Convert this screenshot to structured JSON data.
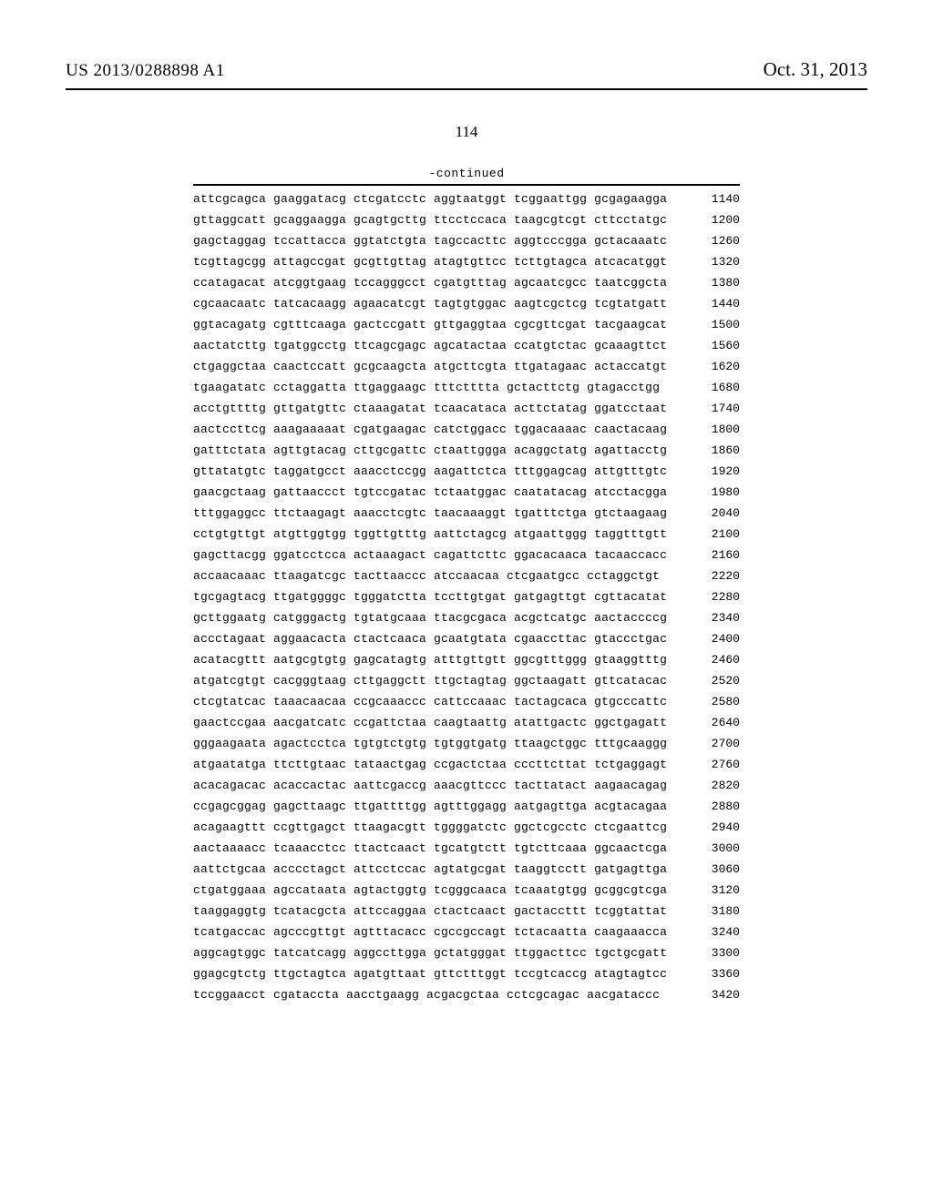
{
  "header": {
    "publication_number": "US 2013/0288898 A1",
    "publication_date": "Oct. 31, 2013"
  },
  "page_number": "114",
  "continued_label": "-continued",
  "sequence": {
    "rows": [
      {
        "groups": [
          "attcgcagca",
          "gaaggatacg",
          "ctcgatcctc",
          "aggtaatggt",
          "tcggaattgg",
          "gcgagaagga"
        ],
        "pos": 1140
      },
      {
        "groups": [
          "gttaggcatt",
          "gcaggaagga",
          "gcagtgcttg",
          "ttcctccaca",
          "taagcgtcgt",
          "cttcctatgc"
        ],
        "pos": 1200
      },
      {
        "groups": [
          "gagctaggag",
          "tccattacca",
          "ggtatctgta",
          "tagccacttc",
          "aggtcccgga",
          "gctacaaatc"
        ],
        "pos": 1260
      },
      {
        "groups": [
          "tcgttagcgg",
          "attagccgat",
          "gcgttgttag",
          "atagtgttcc",
          "tcttgtagca",
          "atcacatggt"
        ],
        "pos": 1320
      },
      {
        "groups": [
          "ccatagacat",
          "atcggtgaag",
          "tccagggcct",
          "cgatgtttag",
          "agcaatcgcc",
          "taatcggcta"
        ],
        "pos": 1380
      },
      {
        "groups": [
          "cgcaacaatc",
          "tatcacaagg",
          "agaacatcgt",
          "tagtgtggac",
          "aagtcgctcg",
          "tcgtatgatt"
        ],
        "pos": 1440
      },
      {
        "groups": [
          "ggtacagatg",
          "cgtttcaaga",
          "gactccgatt",
          "gttgaggtaa",
          "cgcgttcgat",
          "tacgaagcat"
        ],
        "pos": 1500
      },
      {
        "groups": [
          "aactatcttg",
          "tgatggcctg",
          "ttcagcgagc",
          "agcatactaa",
          "ccatgtctac",
          "gcaaagttct"
        ],
        "pos": 1560
      },
      {
        "groups": [
          "ctgaggctaa",
          "caactccatt",
          "gcgcaagcta",
          "atgcttcgta",
          "ttgatagaac",
          "actaccatgt"
        ],
        "pos": 1620
      },
      {
        "groups": [
          "tgaagatatc",
          "cctaggatta",
          "ttgaggaagc",
          "tttctttta",
          "gctacttctg",
          "gtagacctgg"
        ],
        "pos": 1680
      },
      {
        "groups": [
          "acctgttttg",
          "gttgatgttc",
          "ctaaagatat",
          "tcaacataca",
          "acttctatag",
          "ggatcctaat"
        ],
        "pos": 1740
      },
      {
        "groups": [
          "aactccttcg",
          "aaagaaaaat",
          "cgatgaagac",
          "catctggacc",
          "tggacaaaac",
          "caactacaag"
        ],
        "pos": 1800
      },
      {
        "groups": [
          "gatttctata",
          "agttgtacag",
          "cttgcgattc",
          "ctaattggga",
          "acaggctatg",
          "agattacctg"
        ],
        "pos": 1860
      },
      {
        "groups": [
          "gttatatgtc",
          "taggatgcct",
          "aaacctccgg",
          "aagattctca",
          "tttggagcag",
          "attgtttgtc"
        ],
        "pos": 1920
      },
      {
        "groups": [
          "gaacgctaag",
          "gattaaccct",
          "tgtccgatac",
          "tctaatggac",
          "caatatacag",
          "atcctacgga"
        ],
        "pos": 1980
      },
      {
        "groups": [
          "tttggaggcc",
          "ttctaagagt",
          "aaacctcgtc",
          "taacaaaggt",
          "tgatttctga",
          "gtctaagaag"
        ],
        "pos": 2040
      },
      {
        "groups": [
          "cctgtgttgt",
          "atgttggtgg",
          "tggttgtttg",
          "aattctagcg",
          "atgaattggg",
          "taggtttgtt"
        ],
        "pos": 2100
      },
      {
        "groups": [
          "gagcttacgg",
          "ggatcctcca",
          "actaaagact",
          "cagattcttc",
          "ggacacaaca",
          "tacaaccacc"
        ],
        "pos": 2160
      },
      {
        "groups": [
          "accaacaaac",
          "ttaagatcgc",
          "tacttaaccc",
          "atccaacaa",
          "ctcgaatgcc",
          "cctaggctgt"
        ],
        "pos": 2220
      },
      {
        "groups": [
          "tgcgagtacg",
          "ttgatggggc",
          "tgggatctta",
          "tccttgtgat",
          "gatgagttgt",
          "cgttacatat"
        ],
        "pos": 2280
      },
      {
        "groups": [
          "gcttggaatg",
          "catgggactg",
          "tgtatgcaaa",
          "ttacgcgaca",
          "acgctcatgc",
          "aactaccccg"
        ],
        "pos": 2340
      },
      {
        "groups": [
          "accctagaat",
          "aggaacacta",
          "ctactcaaca",
          "gcaatgtata",
          "cgaaccttac",
          "gtaccctgac"
        ],
        "pos": 2400
      },
      {
        "groups": [
          "acatacgttt",
          "aatgcgtgtg",
          "gagcatagtg",
          "atttgttgtt",
          "ggcgtttggg",
          "gtaaggtttg"
        ],
        "pos": 2460
      },
      {
        "groups": [
          "atgatcgtgt",
          "cacgggtaag",
          "cttgaggctt",
          "ttgctagtag",
          "ggctaagatt",
          "gttcatacac"
        ],
        "pos": 2520
      },
      {
        "groups": [
          "ctcgtatcac",
          "taaacaacaa",
          "ccgcaaaccc",
          "cattccaaac",
          "tactagcaca",
          "gtgcccattc"
        ],
        "pos": 2580
      },
      {
        "groups": [
          "gaactccgaa",
          "aacgatcatc",
          "ccgattctaa",
          "caagtaattg",
          "atattgactc",
          "ggctgagatt"
        ],
        "pos": 2640
      },
      {
        "groups": [
          "gggaagaata",
          "agactcctca",
          "tgtgtctgtg",
          "tgtggtgatg",
          "ttaagctggc",
          "tttgcaaggg"
        ],
        "pos": 2700
      },
      {
        "groups": [
          "atgaatatga",
          "ttcttgtaac",
          "tataactgag",
          "ccgactctaa",
          "cccttcttat",
          "tctgaggagt"
        ],
        "pos": 2760
      },
      {
        "groups": [
          "acacagacac",
          "acaccactac",
          "aattcgaccg",
          "aaacgttccc",
          "tacttatact",
          "aagaacagag"
        ],
        "pos": 2820
      },
      {
        "groups": [
          "ccgagcggag",
          "gagcttaagc",
          "ttgattttgg",
          "agtttggagg",
          "aatgagttga",
          "acgtacagaa"
        ],
        "pos": 2880
      },
      {
        "groups": [
          "acagaagttt",
          "ccgttgagct",
          "ttaagacgtt",
          "tggggatctc",
          "ggctcgcctc",
          "ctcgaattcg"
        ],
        "pos": 2940
      },
      {
        "groups": [
          "aactaaaacc",
          "tcaaacctcc",
          "ttactcaact",
          "tgcatgtctt",
          "tgtcttcaaa",
          "ggcaactcga"
        ],
        "pos": 3000
      },
      {
        "groups": [
          "aattctgcaa",
          "acccctagct",
          "attcctccac",
          "agtatgcgat",
          "taaggtcctt",
          "gatgagttga"
        ],
        "pos": 3060
      },
      {
        "groups": [
          "ctgatggaaa",
          "agccataata",
          "agtactggtg",
          "tcgggcaaca",
          "tcaaatgtgg",
          "gcggcgtcga"
        ],
        "pos": 3120
      },
      {
        "groups": [
          "taaggaggtg",
          "tcatacgcta",
          "attccaggaa",
          "ctactcaact",
          "gactaccttt",
          "tcggtattat"
        ],
        "pos": 3180
      },
      {
        "groups": [
          "tcatgaccac",
          "agcccgttgt",
          "agtttacacc",
          "cgccgccagt",
          "tctacaatta",
          "caagaaacca"
        ],
        "pos": 3240
      },
      {
        "groups": [
          "aggcagtggc",
          "tatcatcagg",
          "aggccttgga",
          "gctatgggat",
          "ttggacttcc",
          "tgctgcgatt"
        ],
        "pos": 3300
      },
      {
        "groups": [
          "ggagcgtctg",
          "ttgctagtca",
          "agatgttaat",
          "gttctttggt",
          "tccgtcaccg",
          "atagtagtcc"
        ],
        "pos": 3360
      },
      {
        "groups": [
          "tccggaacct",
          "cgataccta",
          "aacctgaagg",
          "acgacgctaa",
          "cctcgcagac",
          "aacgataccc"
        ],
        "pos": 3420
      }
    ]
  }
}
